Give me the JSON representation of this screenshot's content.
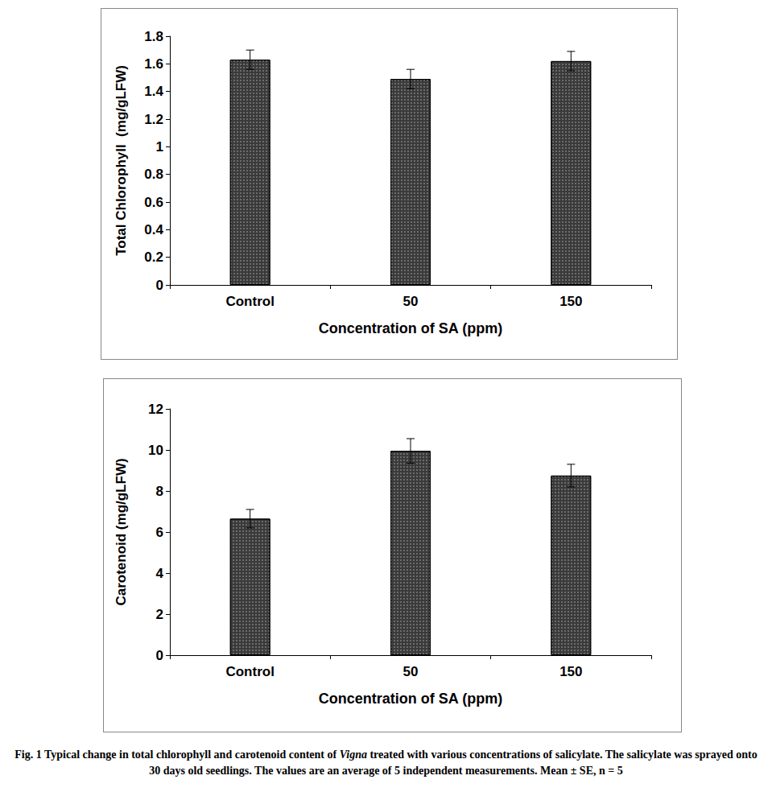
{
  "chart_data": [
    {
      "type": "bar",
      "y_label": "Total Chlorophyll  (mg/gLFW)",
      "x_label": "Concentration of SA (ppm)",
      "categories": [
        "Control",
        "50",
        "150"
      ],
      "values": [
        1.63,
        1.49,
        1.62
      ],
      "errors": [
        0.07,
        0.07,
        0.07
      ],
      "color": "#3a3a3a",
      "ylim": [
        0,
        1.8
      ],
      "yticks": [
        0,
        0.2,
        0.4,
        0.6,
        0.8,
        1,
        1.2,
        1.4,
        1.6,
        1.8
      ],
      "grid": false
    },
    {
      "type": "bar",
      "y_label": "Carotenoid (mg/gLFW)",
      "x_label": "Concentration of SA (ppm)",
      "categories": [
        "Control",
        "50",
        "150"
      ],
      "values": [
        6.65,
        9.95,
        8.75
      ],
      "errors": [
        0.45,
        0.6,
        0.55
      ],
      "color": "#3a3a3a",
      "ylim": [
        0,
        12
      ],
      "yticks": [
        0,
        2,
        4,
        6,
        8,
        10,
        12
      ],
      "grid": false
    }
  ],
  "caption": [
    {
      "text": "Fig. 1 Typical change in total chlorophyll and carotenoid content  of "
    },
    {
      "text": "Vigna",
      "italic": true
    },
    {
      "text": " treated with various concentrations of salicylate. The salicylate was sprayed onto 30 days old seedlings. The values are an average of 5 independent measurements. Mean ± SE, n = 5"
    }
  ]
}
